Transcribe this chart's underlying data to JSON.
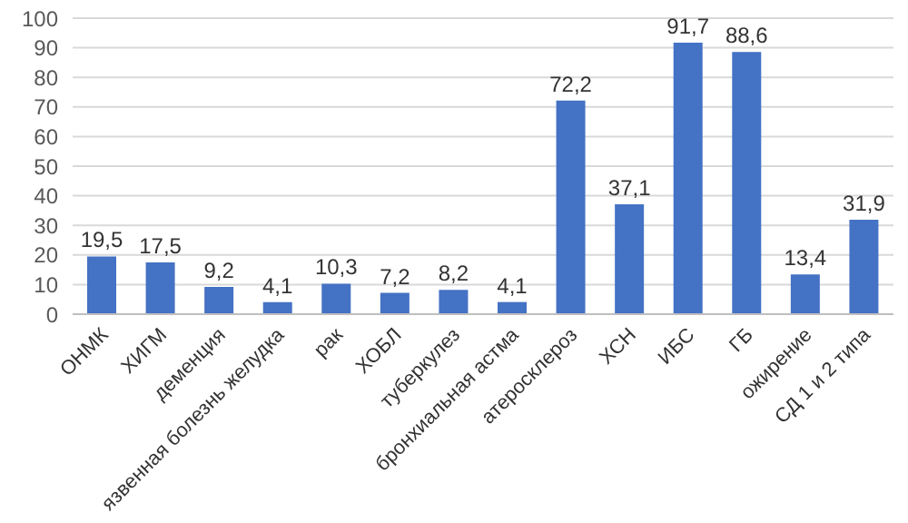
{
  "chart_data": {
    "type": "bar",
    "categories": [
      "ОНМК",
      "ХИГМ",
      "деменция",
      "язвенная болезнь желудка",
      "рак",
      "ХОБЛ",
      "туберкулез",
      "бронхиальная астма",
      "атеросклероз",
      "ХСН",
      "ИБС",
      "ГБ",
      "ожирение",
      "СД 1 и 2 типа"
    ],
    "values": [
      19.5,
      17.5,
      9.2,
      4.1,
      10.3,
      7.2,
      8.2,
      4.1,
      72.2,
      37.1,
      91.7,
      88.6,
      13.4,
      31.9
    ],
    "value_labels": [
      "19,5",
      "17,5",
      "9,2",
      "4,1",
      "10,3",
      "7,2",
      "8,2",
      "4,1",
      "72,2",
      "37,1",
      "91,7",
      "88,6",
      "13,4",
      "31,9"
    ],
    "color": "#4472c4",
    "ylim": [
      0,
      100
    ],
    "yticks": [
      0,
      10,
      20,
      30,
      40,
      50,
      60,
      70,
      80,
      90,
      100
    ],
    "grid": "y",
    "legend": false
  }
}
